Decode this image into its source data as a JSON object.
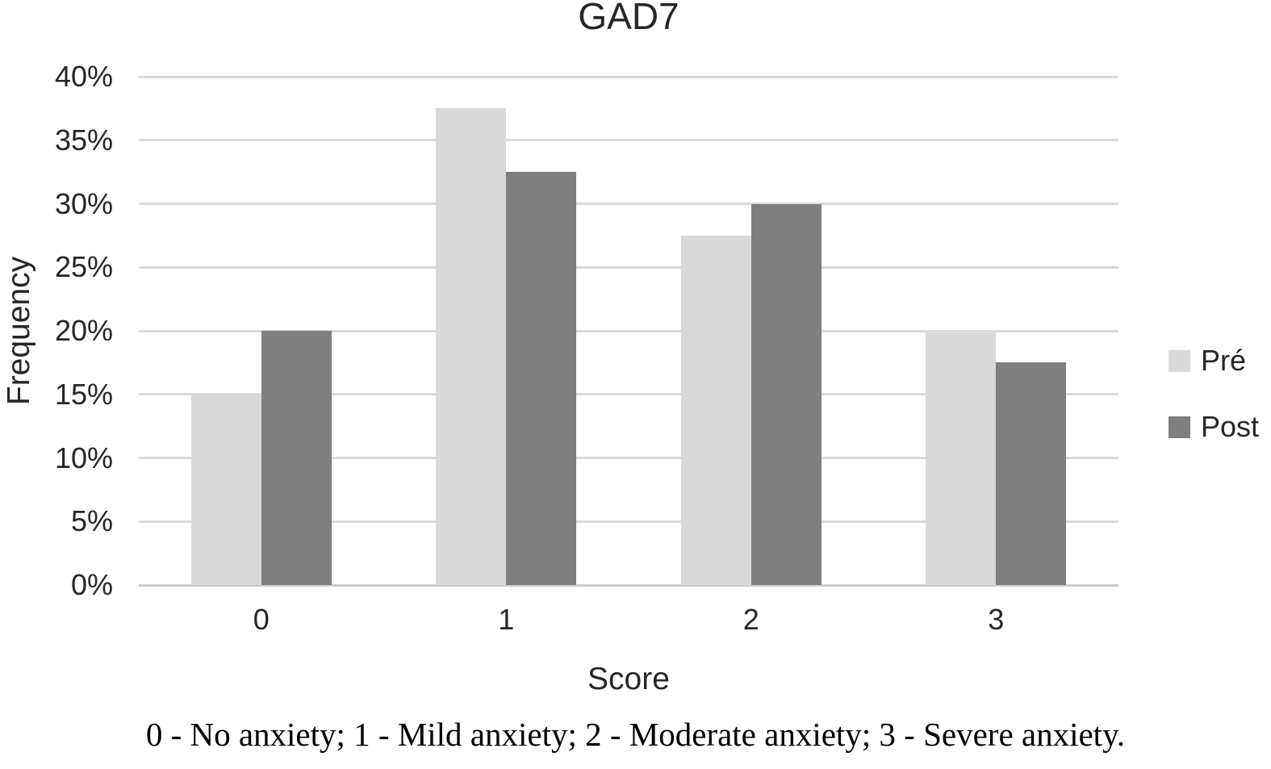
{
  "chart_data": {
    "type": "bar",
    "title": "GAD7",
    "xlabel": "Score",
    "ylabel": "Frequency",
    "categories": [
      "0",
      "1",
      "2",
      "3"
    ],
    "series": [
      {
        "name": "Pré",
        "color": "#d9d9d9",
        "values": [
          15,
          37.5,
          27.5,
          20
        ]
      },
      {
        "name": "Post",
        "color": "#7f7f7f",
        "values": [
          20,
          32.5,
          30,
          17.5
        ]
      }
    ],
    "ylim": [
      0,
      40
    ],
    "ytick_step": 5,
    "ytick_labels": [
      "0%",
      "5%",
      "10%",
      "15%",
      "20%",
      "25%",
      "30%",
      "35%",
      "40%"
    ],
    "grid": true,
    "legend_position": "right",
    "gridline_color": "#d9d9d9"
  },
  "footnote": "0 - No anxiety; 1 - Mild anxiety; 2 - Moderate anxiety; 3 - Severe anxiety."
}
